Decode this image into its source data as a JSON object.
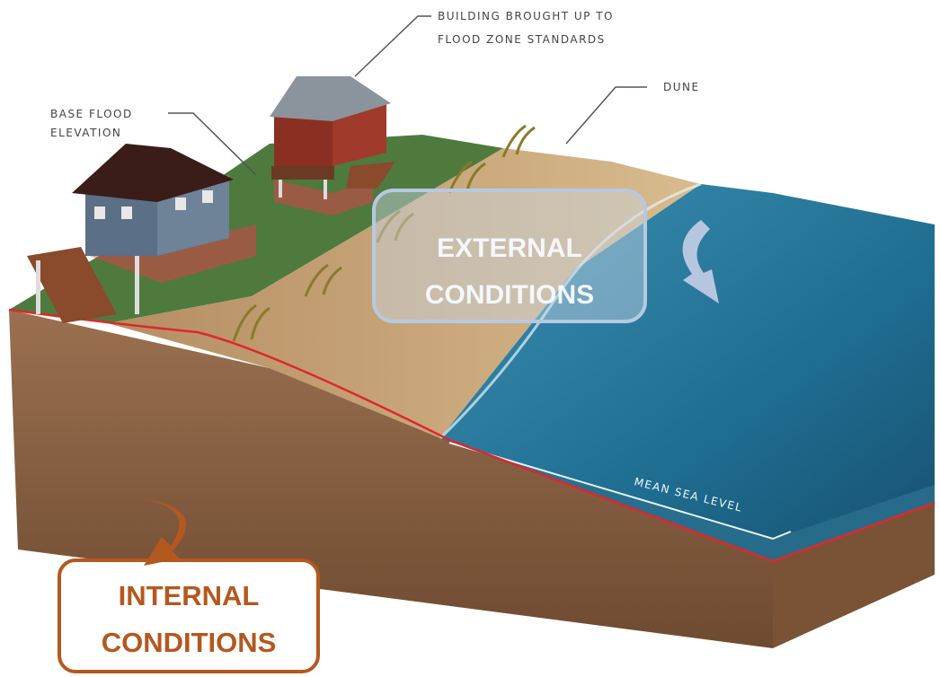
{
  "labels": {
    "building": [
      "BUILDING BROUGHT UP TO",
      "FLOOD ZONE STANDARDS"
    ],
    "dune": "DUNE",
    "base_flood": [
      "BASE FLOOD",
      "ELEVATION"
    ],
    "mean_sea_level": "MEAN SEA LEVEL"
  },
  "callouts": {
    "external": [
      "EXTERNAL",
      "CONDITIONS"
    ],
    "internal": [
      "INTERNAL",
      "CONDITIONS"
    ]
  }
}
